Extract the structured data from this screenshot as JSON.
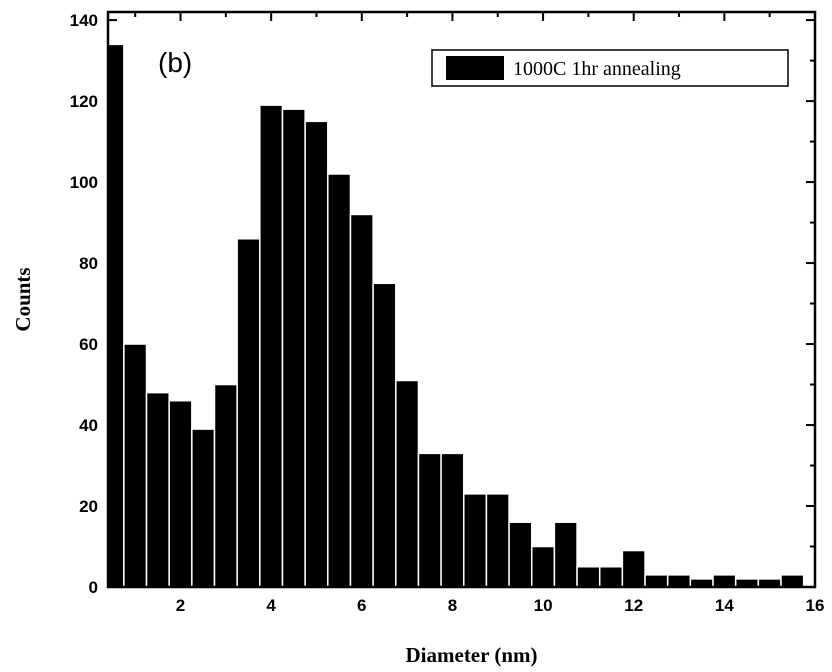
{
  "chart_data": {
    "type": "bar",
    "title": "",
    "panel_label": "(b)",
    "xlabel": "Diameter (nm)",
    "ylabel": "Counts",
    "xlim": [
      0.4,
      16
    ],
    "ylim": [
      0,
      142
    ],
    "xticks": [
      2,
      4,
      6,
      8,
      10,
      12,
      14,
      16
    ],
    "yticks": [
      0,
      20,
      40,
      60,
      80,
      100,
      120,
      140
    ],
    "bin_width": 0.5,
    "legend": {
      "placement": "top-right"
    },
    "colors": {
      "bar": "#000000",
      "bar_edge": "#ffffff"
    },
    "series": [
      {
        "name": "1000C 1hr annealing",
        "x": [
          0.5,
          1.0,
          1.5,
          2.0,
          2.5,
          3.0,
          3.5,
          4.0,
          4.5,
          5.0,
          5.5,
          6.0,
          6.5,
          7.0,
          7.5,
          8.0,
          8.5,
          9.0,
          9.5,
          10.0,
          10.5,
          11.0,
          11.5,
          12.0,
          12.5,
          13.0,
          13.5,
          14.0,
          14.5,
          15.0,
          15.5
        ],
        "values": [
          134,
          60,
          48,
          46,
          39,
          50,
          86,
          119,
          118,
          115,
          102,
          92,
          75,
          51,
          33,
          33,
          23,
          23,
          16,
          10,
          16,
          5,
          5,
          9,
          3,
          3,
          2,
          3,
          2,
          2,
          3
        ]
      }
    ]
  }
}
